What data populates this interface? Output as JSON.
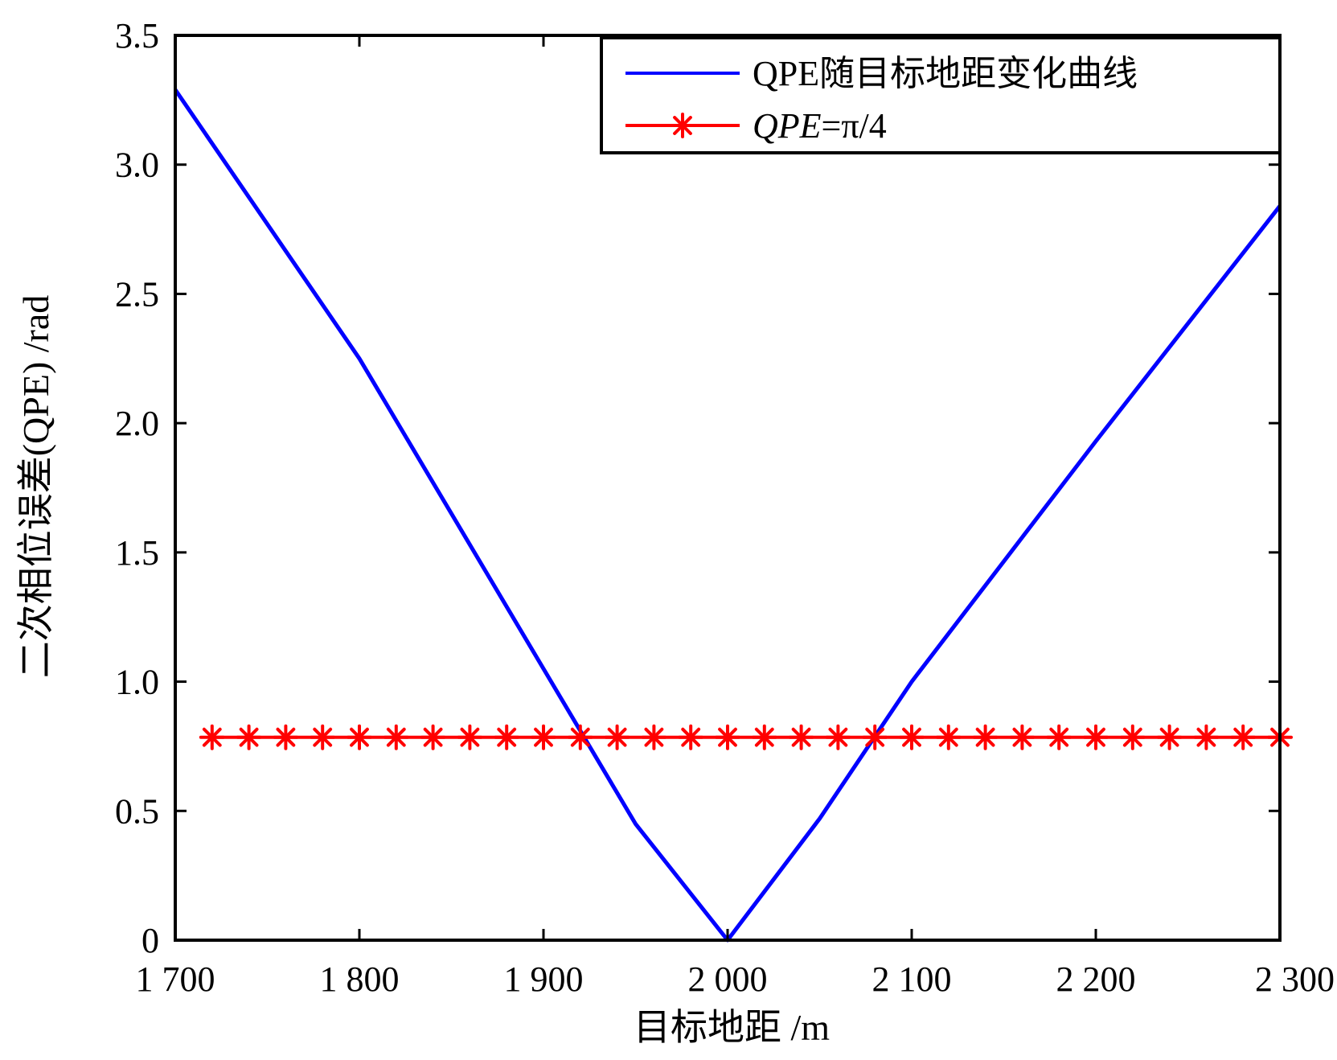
{
  "chart_data": {
    "type": "line",
    "title": "",
    "xlabel": "目标地距 /m",
    "ylabel": "二次相位误差(QPE) /rad",
    "xlim": [
      1700,
      2300
    ],
    "ylim": [
      0,
      3.5
    ],
    "x_ticks": [
      1700,
      1800,
      1900,
      2000,
      2100,
      2200,
      2300
    ],
    "x_tick_labels": [
      "1 700",
      "1 800",
      "1 900",
      "2 000",
      "2 100",
      "2 200",
      "2 300"
    ],
    "y_ticks": [
      0,
      0.5,
      1.0,
      1.5,
      2.0,
      2.5,
      3.0,
      3.5
    ],
    "y_tick_labels": [
      "0",
      "0.5",
      "1.0",
      "1.5",
      "2.0",
      "2.5",
      "3.0",
      "3.5"
    ],
    "grid": false,
    "legend_position": "top-right",
    "series": [
      {
        "name": "QPE随目标地距变化曲线",
        "color": "#0000ff",
        "marker": "none",
        "x": [
          1700,
          1800,
          1900,
          1950,
          2000,
          2050,
          2100,
          2200,
          2300
        ],
        "y": [
          3.29,
          2.25,
          1.05,
          0.45,
          0.0,
          0.47,
          1.0,
          1.93,
          2.84
        ]
      },
      {
        "name_italic": "QPE",
        "name_rest": "=π/4",
        "color": "#ff0000",
        "marker": "asterisk",
        "x": [
          1720,
          1740,
          1760,
          1780,
          1800,
          1820,
          1840,
          1860,
          1880,
          1900,
          1920,
          1940,
          1960,
          1980,
          2000,
          2020,
          2040,
          2060,
          2080,
          2100,
          2120,
          2140,
          2160,
          2180,
          2200,
          2220,
          2240,
          2260,
          2280,
          2300
        ],
        "y": [
          0.785,
          0.785,
          0.785,
          0.785,
          0.785,
          0.785,
          0.785,
          0.785,
          0.785,
          0.785,
          0.785,
          0.785,
          0.785,
          0.785,
          0.785,
          0.785,
          0.785,
          0.785,
          0.785,
          0.785,
          0.785,
          0.785,
          0.785,
          0.785,
          0.785,
          0.785,
          0.785,
          0.785,
          0.785,
          0.785
        ]
      }
    ]
  }
}
